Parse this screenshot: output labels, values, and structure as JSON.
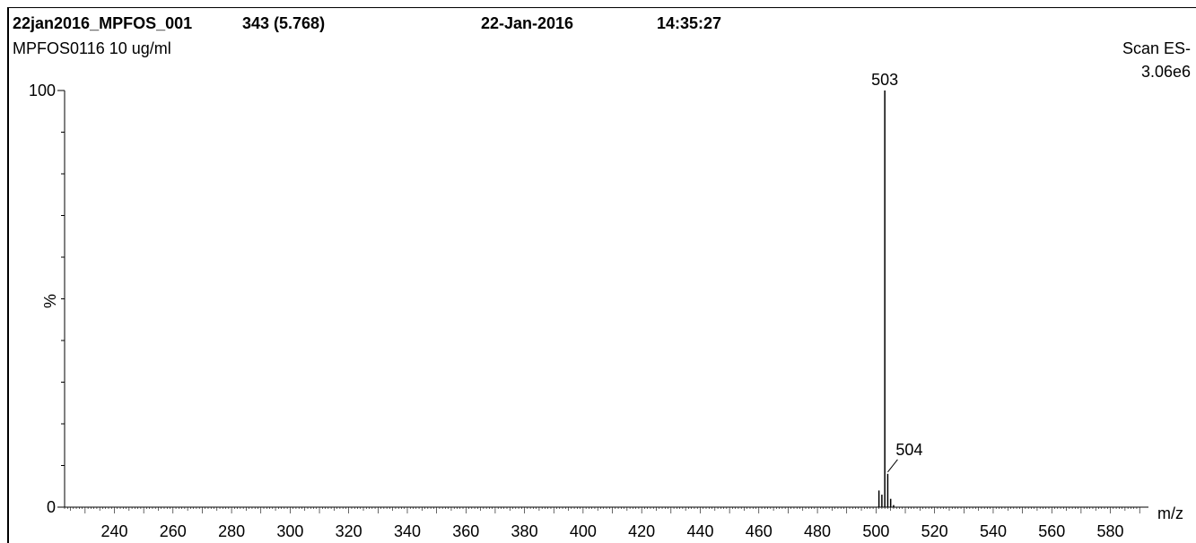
{
  "header": {
    "sample_id": "22jan2016_MPFOS_001",
    "scan_info": "343 (5.768)",
    "date": "22-Jan-2016",
    "time": "14:35:27",
    "sample_desc": "MPFOS0116 10 ug/ml",
    "scan_mode": "Scan ES-",
    "max_intensity": "3.06e6"
  },
  "chart_data": {
    "type": "bar",
    "xlabel": "m/z",
    "ylabel": "%",
    "xlim": [
      223,
      593
    ],
    "ylim": [
      0,
      100
    ],
    "x_ticks": [
      240,
      260,
      280,
      300,
      320,
      340,
      360,
      380,
      400,
      420,
      440,
      460,
      480,
      500,
      520,
      540,
      560,
      580
    ],
    "y_ticks": [
      0,
      100
    ],
    "peaks": [
      {
        "x": 501,
        "y": 4
      },
      {
        "x": 502,
        "y": 3
      },
      {
        "x": 503,
        "y": 100,
        "label": "503"
      },
      {
        "x": 504,
        "y": 8,
        "label": "504"
      },
      {
        "x": 505,
        "y": 2
      },
      {
        "x": 506,
        "y": 0.5
      }
    ]
  }
}
